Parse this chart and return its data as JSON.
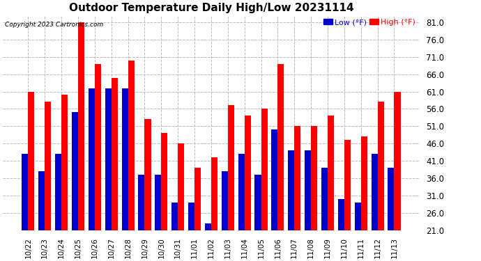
{
  "title": "Outdoor Temperature Daily High/Low 20231114",
  "copyright": "Copyright 2023 Cartronics.com",
  "legend_low": "Low (°F)",
  "legend_high": "High (°F)",
  "low_color": "#0000cc",
  "high_color": "#ff0000",
  "background_color": "#ffffff",
  "ylim": [
    21.0,
    83.0
  ],
  "ybase": 21.0,
  "yticks": [
    21.0,
    26.0,
    31.0,
    36.0,
    41.0,
    46.0,
    51.0,
    56.0,
    61.0,
    66.0,
    71.0,
    76.0,
    81.0
  ],
  "grid_color": "#bbbbbb",
  "dates": [
    "10/22",
    "10/23",
    "10/24",
    "10/25",
    "10/26",
    "10/27",
    "10/28",
    "10/29",
    "10/30",
    "10/31",
    "11/01",
    "11/02",
    "11/03",
    "11/04",
    "11/05",
    "11/06",
    "11/07",
    "11/08",
    "11/09",
    "11/10",
    "11/11",
    "11/12",
    "11/13"
  ],
  "highs": [
    61,
    58,
    60,
    81,
    69,
    65,
    70,
    53,
    49,
    46,
    39,
    42,
    57,
    54,
    56,
    69,
    51,
    51,
    54,
    47,
    48,
    58,
    61
  ],
  "lows": [
    43,
    38,
    43,
    55,
    62,
    62,
    62,
    37,
    37,
    29,
    29,
    23,
    38,
    43,
    37,
    50,
    44,
    44,
    39,
    30,
    29,
    43,
    39
  ]
}
